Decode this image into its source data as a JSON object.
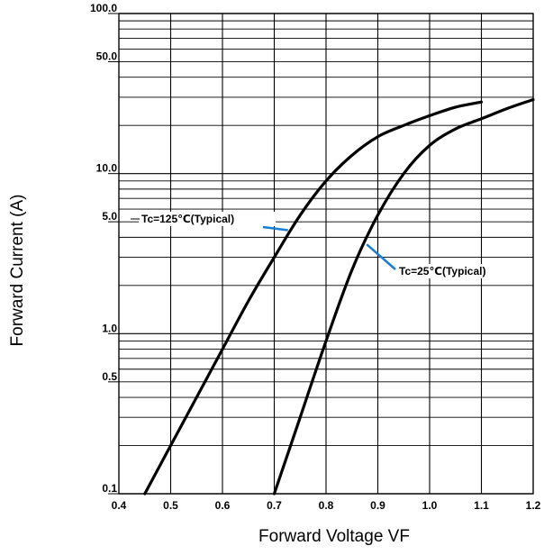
{
  "chart_data": {
    "type": "line",
    "title": "",
    "xlabel": "Forward Voltage VF",
    "ylabel": "Forward Current (A)",
    "xlim": [
      0.4,
      1.2
    ],
    "ylim": [
      0.1,
      100
    ],
    "y_scale": "log",
    "grid": true,
    "x_ticks": [
      "0.4",
      "0.5",
      "0.6",
      "0.7",
      "0.8",
      "0.9",
      "1.0",
      "1.1",
      "1.2"
    ],
    "y_ticks": [
      {
        "value": 100,
        "label": "100.0"
      },
      {
        "value": 50,
        "label": "50.0"
      },
      {
        "value": 10,
        "label": "10.0"
      },
      {
        "value": 5,
        "label": "5.0"
      },
      {
        "value": 1,
        "label": "1.0"
      },
      {
        "value": 0.5,
        "label": "0.5"
      },
      {
        "value": 0.1,
        "label": "0.1"
      }
    ],
    "series": [
      {
        "name": "Tc=125℃(Typical)",
        "x": [
          0.45,
          0.5,
          0.55,
          0.6,
          0.65,
          0.7,
          0.75,
          0.8,
          0.85,
          0.9,
          0.95,
          1.0,
          1.05,
          1.1
        ],
        "y": [
          0.1,
          0.2,
          0.4,
          0.8,
          1.6,
          3.0,
          5.5,
          9.0,
          13.0,
          17.0,
          20.0,
          23.0,
          26.0,
          28.0
        ]
      },
      {
        "name": "Tc=25℃(Typical)",
        "x": [
          0.7,
          0.75,
          0.8,
          0.85,
          0.9,
          0.95,
          1.0,
          1.05,
          1.1,
          1.15,
          1.2
        ],
        "y": [
          0.1,
          0.3,
          0.9,
          2.5,
          5.5,
          10.0,
          15.0,
          19.0,
          22.0,
          25.5,
          29.0
        ]
      }
    ],
    "annotations": [
      {
        "text": "Tc=125℃(Typical)",
        "series": 0,
        "at_x": 0.73
      },
      {
        "text": "Tc=25℃(Typical)",
        "series": 1,
        "at_x": 0.875
      }
    ],
    "line_color": "#000000",
    "annotation_color": "#1a7fd4"
  }
}
